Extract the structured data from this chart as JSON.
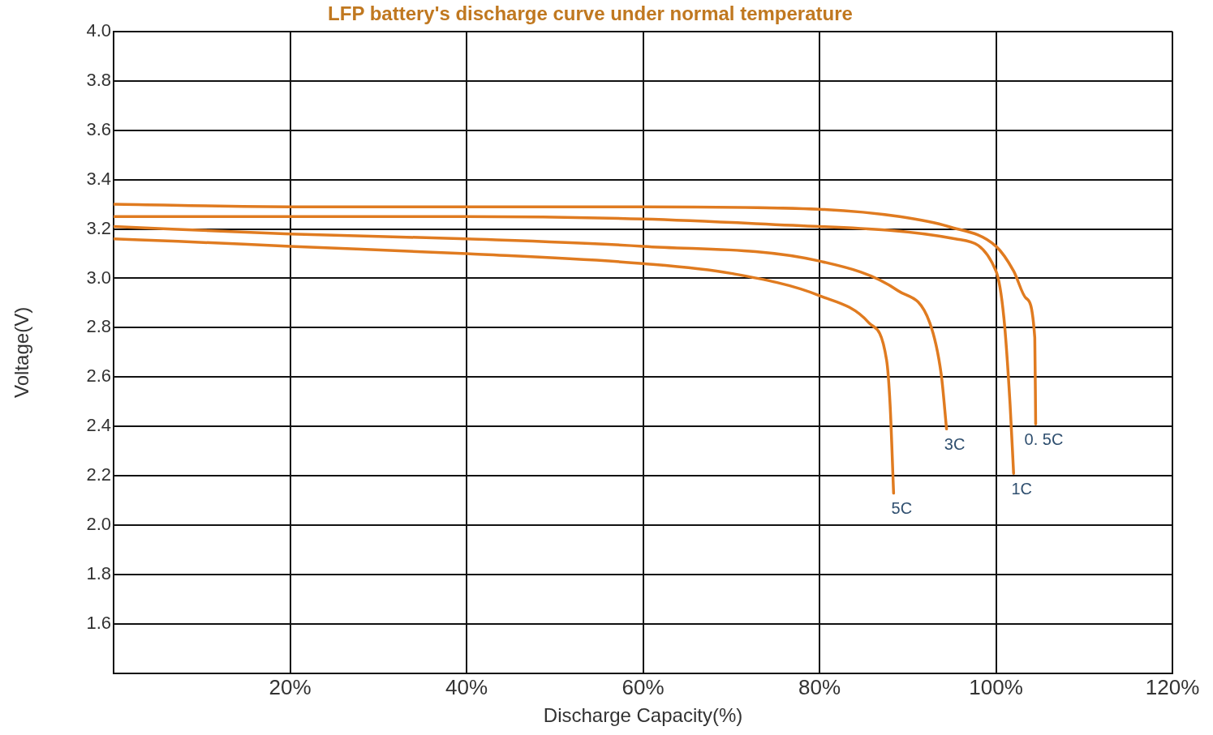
{
  "chart_data": {
    "type": "line",
    "title": "LFP battery's discharge curve under normal temperature",
    "xlabel": "Discharge Capacity(%)",
    "ylabel": "Voltage(V)",
    "xlim": [
      0,
      120
    ],
    "xticks": [
      {
        "value": 0,
        "label": null
      },
      {
        "value": 20,
        "label": "20%"
      },
      {
        "value": 40,
        "label": "40%"
      },
      {
        "value": 60,
        "label": "60%"
      },
      {
        "value": 80,
        "label": "80%"
      },
      {
        "value": 100,
        "label": "100%"
      },
      {
        "value": 120,
        "label": "120%"
      }
    ],
    "ylim": [
      1.4,
      4.0
    ],
    "yticks": [
      {
        "value": 1.6,
        "label": "1.6"
      },
      {
        "value": 1.8,
        "label": "1.8"
      },
      {
        "value": 2.0,
        "label": "2.0"
      },
      {
        "value": 2.2,
        "label": "2.2"
      },
      {
        "value": 2.4,
        "label": "2.4"
      },
      {
        "value": 2.6,
        "label": "2.6"
      },
      {
        "value": 2.8,
        "label": "2.8"
      },
      {
        "value": 3.0,
        "label": "3.0"
      },
      {
        "value": 3.2,
        "label": "3.2"
      },
      {
        "value": 3.4,
        "label": "3.4"
      },
      {
        "value": 3.6,
        "label": "3.6"
      },
      {
        "value": 3.8,
        "label": "3.8"
      },
      {
        "value": 4.0,
        "label": "4.0"
      }
    ],
    "grid": true,
    "legend": false,
    "marker": "none",
    "line_style": "solid",
    "series": [
      {
        "name": "0. 5C",
        "color": "#e07b20",
        "x": [
          0,
          20,
          40,
          60,
          80,
          89.1,
          94.6,
          100,
          102,
          103.4,
          104.4,
          104.5
        ],
        "values": [
          3.3,
          3.29,
          3.29,
          3.29,
          3.28,
          3.25,
          3.21,
          3.13,
          3.03,
          2.92,
          2.76,
          2.41
        ]
      },
      {
        "name": "1C",
        "color": "#e07b20",
        "x": [
          0,
          20,
          40,
          60,
          80,
          95.4,
          100,
          100.9,
          101.6,
          102.0
        ],
        "values": [
          3.25,
          3.25,
          3.25,
          3.24,
          3.21,
          3.16,
          3.03,
          2.84,
          2.49,
          2.21
        ]
      },
      {
        "name": "3C",
        "color": "#e07b20",
        "x": [
          0,
          20,
          40,
          60,
          80,
          88.9,
          92.5,
          93.8,
          94.4
        ],
        "values": [
          3.21,
          3.18,
          3.16,
          3.13,
          3.07,
          2.95,
          2.82,
          2.61,
          2.39
        ]
      },
      {
        "name": "5C",
        "color": "#e07b20",
        "x": [
          0,
          7.3,
          20,
          40,
          60,
          70,
          80,
          85.6,
          87.6,
          88.0,
          88.4
        ],
        "values": [
          3.16,
          3.15,
          3.13,
          3.1,
          3.06,
          3.02,
          2.93,
          2.82,
          2.67,
          2.49,
          2.13
        ]
      }
    ]
  }
}
